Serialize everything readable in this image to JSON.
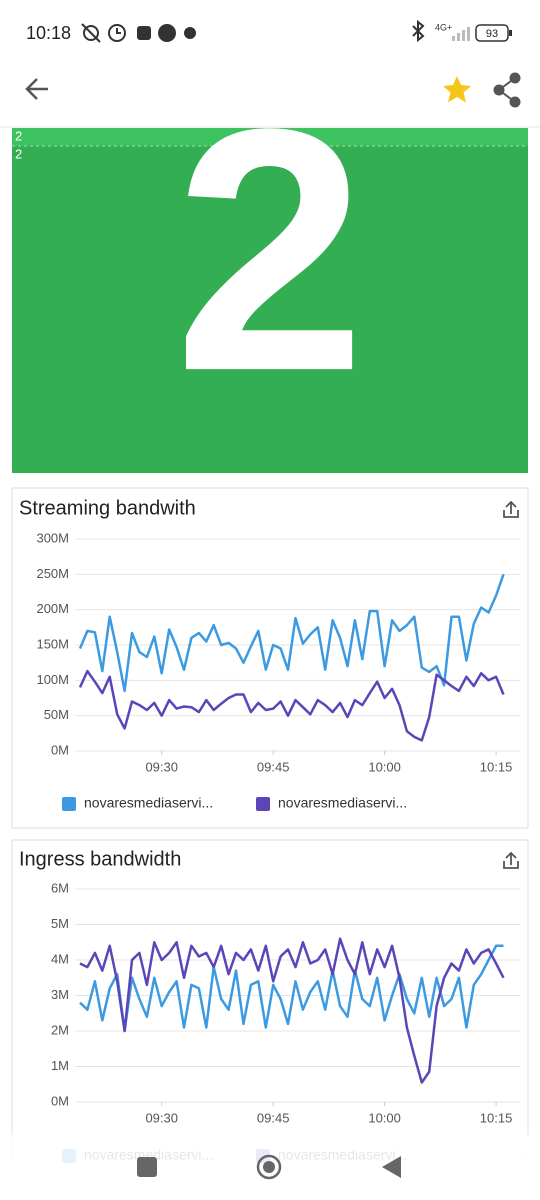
{
  "status_bar": {
    "time": "10:18",
    "network": "4G+",
    "battery": "93"
  },
  "stat_panel": {
    "value": "2",
    "labels": [
      "2",
      "2"
    ]
  },
  "chart_data": [
    {
      "type": "line",
      "title": "Streaming bandwith",
      "grid": true,
      "x": [
        "09:19",
        "09:20",
        "09:21",
        "09:22",
        "09:23",
        "09:24",
        "09:25",
        "09:26",
        "09:27",
        "09:28",
        "09:29",
        "09:30",
        "09:31",
        "09:32",
        "09:33",
        "09:34",
        "09:35",
        "09:36",
        "09:37",
        "09:38",
        "09:39",
        "09:40",
        "09:41",
        "09:42",
        "09:43",
        "09:44",
        "09:45",
        "09:46",
        "09:47",
        "09:48",
        "09:49",
        "09:50",
        "09:51",
        "09:52",
        "09:53",
        "09:54",
        "09:55",
        "09:56",
        "09:57",
        "09:58",
        "09:59",
        "10:00",
        "10:01",
        "10:02",
        "10:03",
        "10:04",
        "10:05",
        "10:06",
        "10:07",
        "10:08",
        "10:09",
        "10:10",
        "10:11",
        "10:12",
        "10:13",
        "10:14",
        "10:15",
        "10:16"
      ],
      "xticks": [
        "09:30",
        "09:45",
        "10:00",
        "10:15"
      ],
      "ylim": [
        0,
        300
      ],
      "yticks": [
        {
          "value": 0,
          "label": "0M"
        },
        {
          "value": 50,
          "label": "50M"
        },
        {
          "value": 100,
          "label": "100M"
        },
        {
          "value": 150,
          "label": "150M"
        },
        {
          "value": 200,
          "label": "200M"
        },
        {
          "value": 250,
          "label": "250M"
        },
        {
          "value": 300,
          "label": "300M"
        }
      ],
      "series": [
        {
          "name": "novaresmediaservi...",
          "color": "#3b9ae1",
          "values": [
            145,
            170,
            168,
            113,
            190,
            140,
            85,
            167,
            140,
            133,
            162,
            110,
            172,
            147,
            115,
            160,
            167,
            155,
            178,
            150,
            153,
            145,
            125,
            148,
            170,
            115,
            150,
            145,
            115,
            188,
            152,
            165,
            175,
            115,
            185,
            160,
            120,
            185,
            130,
            198,
            198,
            120,
            185,
            170,
            178,
            190,
            118,
            112,
            120,
            93,
            190,
            190,
            128,
            180,
            203,
            196,
            220,
            250
          ]
        },
        {
          "name": "novaresmediaservi...",
          "color": "#5b45b8",
          "values": [
            90,
            113,
            98,
            82,
            105,
            52,
            32,
            70,
            65,
            58,
            68,
            50,
            72,
            60,
            63,
            62,
            55,
            72,
            58,
            67,
            75,
            80,
            80,
            55,
            68,
            58,
            60,
            70,
            50,
            72,
            62,
            52,
            72,
            65,
            55,
            68,
            48,
            72,
            65,
            82,
            98,
            75,
            88,
            65,
            28,
            20,
            15,
            48,
            108,
            100,
            92,
            85,
            105,
            92,
            110,
            100,
            105,
            80
          ]
        }
      ]
    },
    {
      "type": "line",
      "title": "Ingress bandwidth",
      "grid": true,
      "x": [
        "09:19",
        "09:20",
        "09:21",
        "09:22",
        "09:23",
        "09:24",
        "09:25",
        "09:26",
        "09:27",
        "09:28",
        "09:29",
        "09:30",
        "09:31",
        "09:32",
        "09:33",
        "09:34",
        "09:35",
        "09:36",
        "09:37",
        "09:38",
        "09:39",
        "09:40",
        "09:41",
        "09:42",
        "09:43",
        "09:44",
        "09:45",
        "09:46",
        "09:47",
        "09:48",
        "09:49",
        "09:50",
        "09:51",
        "09:52",
        "09:53",
        "09:54",
        "09:55",
        "09:56",
        "09:57",
        "09:58",
        "09:59",
        "10:00",
        "10:01",
        "10:02",
        "10:03",
        "10:04",
        "10:05",
        "10:06",
        "10:07",
        "10:08",
        "10:09",
        "10:10",
        "10:11",
        "10:12",
        "10:13",
        "10:14",
        "10:15",
        "10:16"
      ],
      "xticks": [
        "09:30",
        "09:45",
        "10:00",
        "10:15"
      ],
      "ylim": [
        0,
        6
      ],
      "yticks": [
        {
          "value": 0,
          "label": "0M"
        },
        {
          "value": 1,
          "label": "1M"
        },
        {
          "value": 2,
          "label": "2M"
        },
        {
          "value": 3,
          "label": "3M"
        },
        {
          "value": 4,
          "label": "4M"
        },
        {
          "value": 5,
          "label": "5M"
        },
        {
          "value": 6,
          "label": "6M"
        }
      ],
      "series": [
        {
          "name": "novaresmediaservi...",
          "color": "#3b9ae1",
          "values": [
            2.8,
            2.6,
            3.4,
            2.3,
            3.2,
            3.6,
            2.0,
            3.5,
            2.9,
            2.4,
            3.5,
            2.7,
            3.1,
            3.4,
            2.1,
            3.3,
            3.2,
            2.1,
            3.8,
            2.9,
            2.6,
            3.7,
            2.2,
            3.3,
            3.4,
            2.1,
            3.3,
            2.9,
            2.2,
            3.4,
            2.6,
            3.1,
            3.4,
            2.6,
            3.7,
            2.7,
            2.4,
            3.7,
            2.9,
            2.7,
            3.5,
            2.3,
            3.0,
            3.6,
            2.9,
            2.5,
            3.5,
            2.4,
            3.5,
            2.7,
            2.9,
            3.5,
            2.1,
            3.3,
            3.6,
            4.0,
            4.4,
            4.4
          ]
        },
        {
          "name": "novaresmediaservi...",
          "color": "#5b45b8",
          "values": [
            3.9,
            3.8,
            4.2,
            3.7,
            4.4,
            3.4,
            2.0,
            4.0,
            4.2,
            3.3,
            4.5,
            4.0,
            4.2,
            4.5,
            3.5,
            4.4,
            4.1,
            4.2,
            3.8,
            4.4,
            3.6,
            4.2,
            4.0,
            4.3,
            3.7,
            4.4,
            3.4,
            4.1,
            4.3,
            3.8,
            4.5,
            3.9,
            4.0,
            4.3,
            3.6,
            4.6,
            4.0,
            3.6,
            4.5,
            3.6,
            4.3,
            3.8,
            4.4,
            3.5,
            2.1,
            1.3,
            0.55,
            0.85,
            2.7,
            3.5,
            3.9,
            3.7,
            4.3,
            3.9,
            4.2,
            4.3,
            3.9,
            3.5
          ]
        }
      ]
    }
  ]
}
